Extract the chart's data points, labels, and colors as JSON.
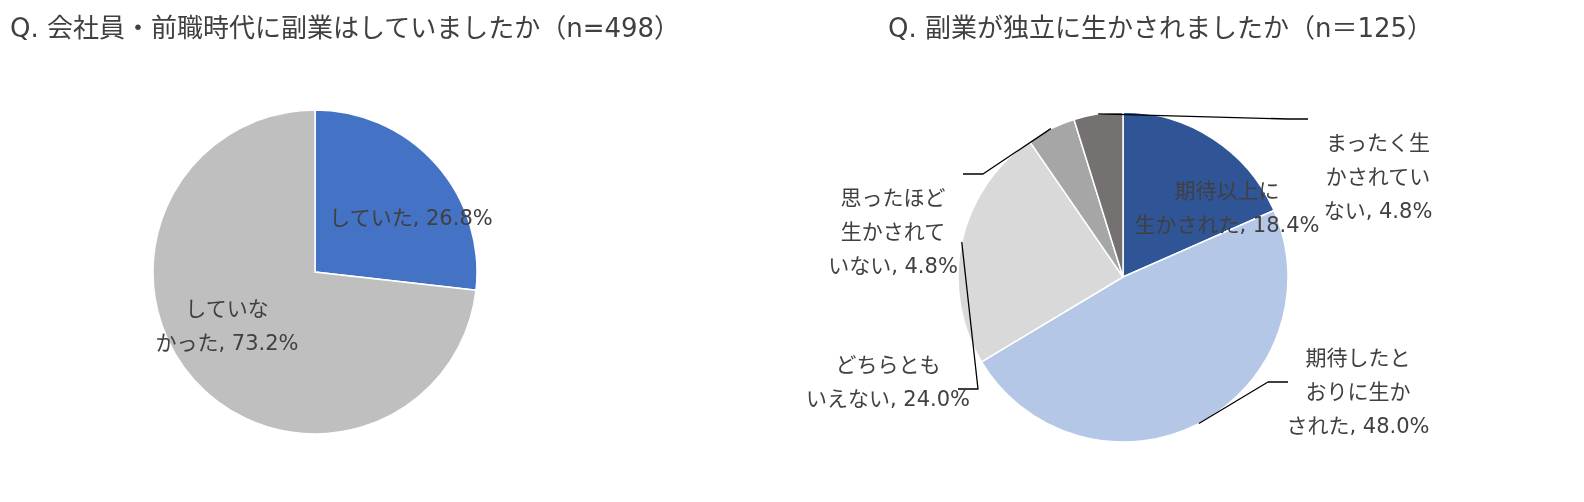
{
  "chart_data": [
    {
      "type": "pie",
      "title": "Q. 会社員・前職時代に副業はしていましたか（n=498）",
      "categories": [
        "していた",
        "していなかった"
      ],
      "values": [
        26.8,
        73.2
      ],
      "colors": [
        "#4472c4",
        "#bfbfbf"
      ],
      "value_labels": [
        "26.8%",
        "73.2%"
      ],
      "legend": false
    },
    {
      "type": "pie",
      "title": "Q. 副業が独立に生かされましたか（n＝125）",
      "categories": [
        "期待以上に生かされた",
        "期待したとおりに生かされた",
        "どちらともいえない",
        "思ったほど生かされていない",
        "まったく生かされていない"
      ],
      "values": [
        18.4,
        48.0,
        24.0,
        4.8,
        4.8
      ],
      "colors": [
        "#2f5597",
        "#b4c7e7",
        "#d9d9d9",
        "#a6a6a6",
        "#767171"
      ],
      "value_labels": [
        "18.4%",
        "48.0%",
        "24.0%",
        "4.8%",
        "4.8%"
      ],
      "legend": false
    }
  ]
}
